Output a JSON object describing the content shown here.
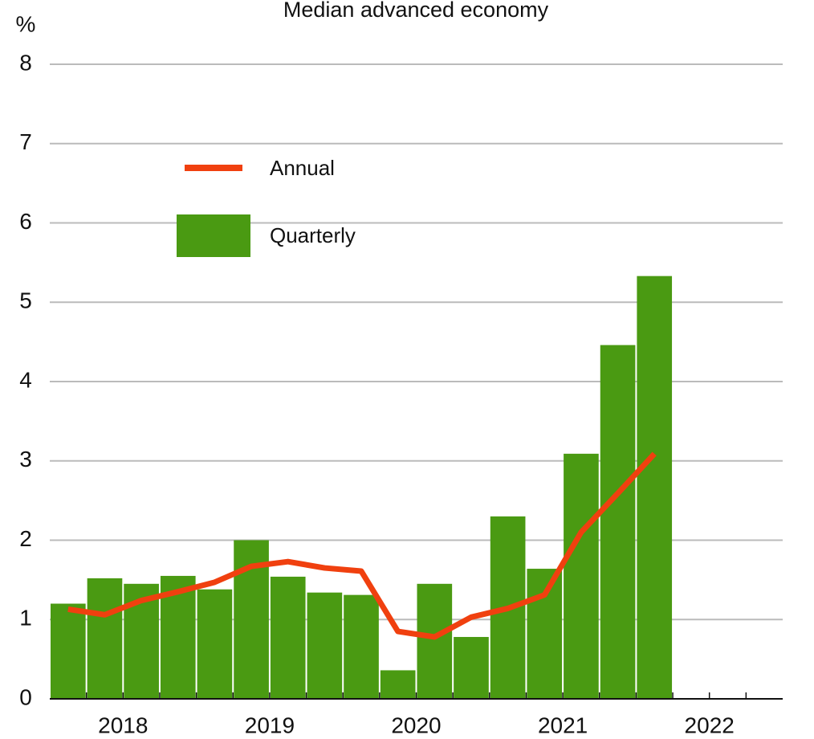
{
  "chart_data": {
    "type": "bar",
    "title": "Median advanced economy",
    "y_label": "%",
    "categories": [
      null,
      null,
      null,
      null,
      null,
      null,
      null,
      null,
      null,
      null,
      null,
      null,
      null,
      null,
      null,
      null,
      null,
      null,
      null,
      null
    ],
    "x_group_labels": [
      "2018",
      "2019",
      "2020",
      "2021",
      "2022"
    ],
    "series": [
      {
        "name": "Quarterly",
        "color": "#4a9a12",
        "type": "bar",
        "values": [
          1.2,
          1.52,
          1.45,
          1.55,
          1.38,
          2.0,
          1.54,
          1.34,
          1.31,
          0.36,
          1.45,
          0.78,
          2.3,
          1.64,
          3.09,
          4.46,
          5.33,
          null,
          null,
          null
        ]
      },
      {
        "name": "Annual",
        "color": "#f0400f",
        "type": "line",
        "values": [
          1.13,
          1.06,
          1.24,
          1.35,
          1.47,
          1.67,
          1.73,
          1.65,
          1.61,
          0.85,
          0.78,
          1.03,
          1.14,
          1.31,
          2.1,
          2.59,
          3.09,
          null,
          null,
          null
        ]
      }
    ],
    "ylim": [
      0,
      8
    ],
    "yticks": [
      0,
      1,
      2,
      3,
      4,
      5,
      6,
      7,
      8
    ],
    "grid": true
  }
}
